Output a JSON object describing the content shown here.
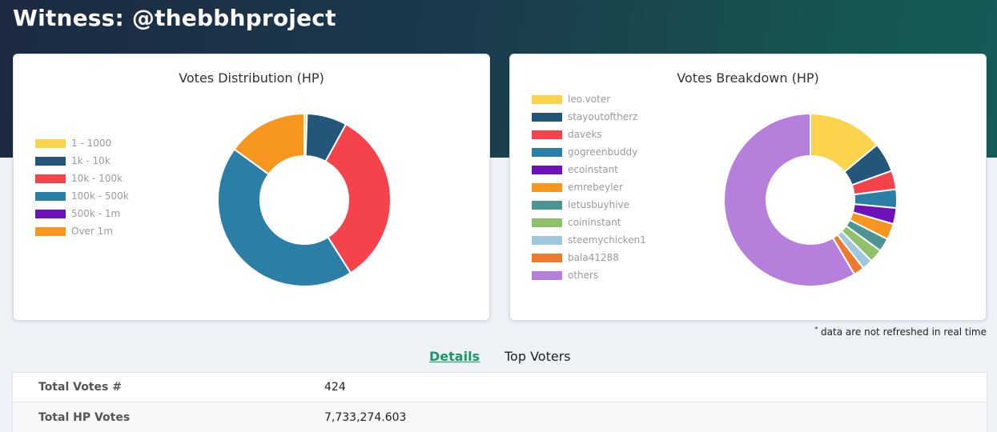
{
  "page": {
    "title": "Witness: @thebbhproject"
  },
  "distribution": {
    "title": "Votes Distribution (HP)",
    "legend": [
      {
        "label": "1 - 1000",
        "color": "#fcd34d",
        "value": 0.5
      },
      {
        "label": "1k - 10k",
        "color": "#24567a",
        "value": 7.5
      },
      {
        "label": "10k - 100k",
        "color": "#f4434a",
        "value": 33
      },
      {
        "label": "100k - 500k",
        "color": "#2b7fa6",
        "value": 44
      },
      {
        "label": "500k - 1m",
        "color": "#6d12b8",
        "value": 0
      },
      {
        "label": "Over 1m",
        "color": "#f7961e",
        "value": 15
      }
    ]
  },
  "breakdown": {
    "title": "Votes Breakdown (HP)",
    "legend": [
      {
        "label": "leo.voter",
        "color": "#fcd34d",
        "value": 14
      },
      {
        "label": "stayoutoftherz",
        "color": "#24567a",
        "value": 5.5
      },
      {
        "label": "daveks",
        "color": "#f4434a",
        "value": 3.5
      },
      {
        "label": "gogreenbuddy",
        "color": "#2b7fa6",
        "value": 3.5
      },
      {
        "label": "ecoinstant",
        "color": "#6d12b8",
        "value": 3.0
      },
      {
        "label": "emrebeyler",
        "color": "#f7961e",
        "value": 3.0
      },
      {
        "label": "letusbuyhive",
        "color": "#4f9494",
        "value": 2.5
      },
      {
        "label": "coininstant",
        "color": "#8fc06a",
        "value": 2.5
      },
      {
        "label": "steemychicken1",
        "color": "#9fc8df",
        "value": 2.0
      },
      {
        "label": "bala41288",
        "color": "#ef7a2e",
        "value": 2.0
      },
      {
        "label": "others",
        "color": "#b77fdc",
        "value": 58.5
      }
    ]
  },
  "footnote": {
    "marker": "*",
    "text": " data are not refreshed in real time"
  },
  "tabs": {
    "details": "Details",
    "top_voters": "Top Voters"
  },
  "details": [
    {
      "key": "Total Votes #",
      "value": "424"
    },
    {
      "key": "Total HP Votes",
      "value": "7,733,274.603"
    }
  ]
}
